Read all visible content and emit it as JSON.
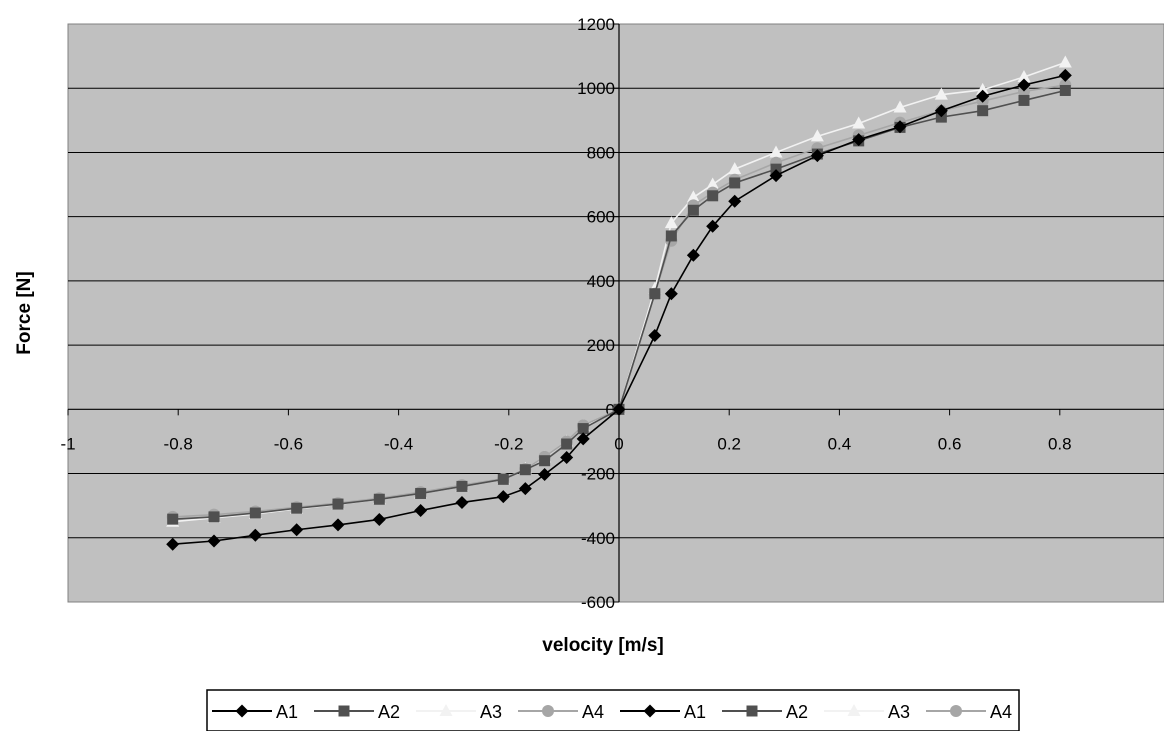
{
  "chart_data": {
    "type": "line",
    "title": "",
    "xlabel": "velocity [m/s]",
    "ylabel": "Force [N]",
    "xlim": [
      -1,
      1
    ],
    "ylim": [
      -600,
      1200
    ],
    "x_ticks": [
      -1,
      -0.8,
      -0.6,
      -0.4,
      -0.2,
      0,
      0.2,
      0.4,
      0.6,
      0.8
    ],
    "x_tick_labels": [
      "-1",
      "-0.8",
      "-0.6",
      "-0.4",
      "-0.2",
      "0",
      "0.2",
      "0.4",
      "0.6",
      "0.8"
    ],
    "y_ticks": [
      -600,
      -400,
      -200,
      0,
      200,
      400,
      600,
      800,
      1000,
      1200
    ],
    "y_tick_labels": [
      "-600",
      "-400",
      "-200",
      "0",
      "200",
      "400",
      "600",
      "800",
      "1000",
      "1200"
    ],
    "grid": "horizontal",
    "plot_background": "#c0c0c0",
    "legend_position": "bottom",
    "legend": [
      "A1",
      "A2",
      "A3",
      "A4",
      "A1",
      "A2",
      "A3",
      "A4"
    ],
    "series": [
      {
        "name": "A1",
        "marker": "diamond",
        "color": "#000000",
        "x": [
          -0.81,
          -0.735,
          -0.66,
          -0.585,
          -0.51,
          -0.435,
          -0.36,
          -0.285,
          -0.21,
          -0.17,
          -0.135,
          -0.095,
          -0.065,
          0,
          0.065,
          0.095,
          0.135,
          0.17,
          0.21,
          0.285,
          0.36,
          0.435,
          0.51,
          0.585,
          0.66,
          0.735,
          0.81
        ],
        "y": [
          -420,
          -410,
          -392,
          -375,
          -360,
          -343,
          -315,
          -290,
          -272,
          -247,
          -203,
          -150,
          -92,
          0,
          230,
          360,
          480,
          570,
          648,
          728,
          790,
          840,
          880,
          930,
          975,
          1010,
          1040
        ]
      },
      {
        "name": "A2",
        "marker": "square",
        "color": "#505050",
        "x": [
          -0.81,
          -0.735,
          -0.66,
          -0.585,
          -0.51,
          -0.435,
          -0.36,
          -0.285,
          -0.21,
          -0.17,
          -0.135,
          -0.095,
          -0.065,
          0,
          0.065,
          0.095,
          0.135,
          0.17,
          0.21,
          0.285,
          0.36,
          0.435,
          0.51,
          0.585,
          0.66,
          0.735,
          0.81
        ],
        "y": [
          -342,
          -335,
          -323,
          -308,
          -295,
          -280,
          -262,
          -240,
          -218,
          -188,
          -160,
          -108,
          -60,
          0,
          360,
          540,
          620,
          665,
          705,
          748,
          795,
          836,
          878,
          910,
          930,
          962,
          993
        ]
      },
      {
        "name": "A3",
        "marker": "triangle",
        "color": "#f2f2f2",
        "x": [
          -0.81,
          -0.735,
          -0.66,
          -0.585,
          -0.51,
          -0.435,
          -0.36,
          -0.285,
          -0.21,
          -0.17,
          -0.135,
          -0.095,
          -0.065,
          0,
          0.065,
          0.095,
          0.135,
          0.17,
          0.21,
          0.285,
          0.36,
          0.435,
          0.51,
          0.585,
          0.66,
          0.735,
          0.81
        ],
        "y": [
          -350,
          -338,
          -326,
          -310,
          -296,
          -280,
          -262,
          -240,
          -218,
          -185,
          -150,
          -100,
          -52,
          0,
          375,
          580,
          660,
          700,
          748,
          800,
          850,
          890,
          940,
          980,
          995,
          1035,
          1080
        ]
      },
      {
        "name": "A4",
        "marker": "circle",
        "color": "#a6a6a6",
        "x": [
          -0.81,
          -0.735,
          -0.66,
          -0.585,
          -0.51,
          -0.435,
          -0.36,
          -0.285,
          -0.21,
          -0.17,
          -0.135,
          -0.095,
          -0.065,
          0,
          0.065,
          0.095,
          0.135,
          0.17,
          0.21,
          0.285,
          0.36,
          0.435,
          0.51,
          0.585,
          0.66,
          0.735,
          0.81
        ],
        "y": [
          -335,
          -328,
          -318,
          -305,
          -292,
          -277,
          -258,
          -236,
          -216,
          -186,
          -148,
          -100,
          -50,
          0,
          360,
          525,
          635,
          675,
          715,
          768,
          813,
          853,
          893,
          930,
          960,
          990,
          1010
        ]
      }
    ]
  }
}
